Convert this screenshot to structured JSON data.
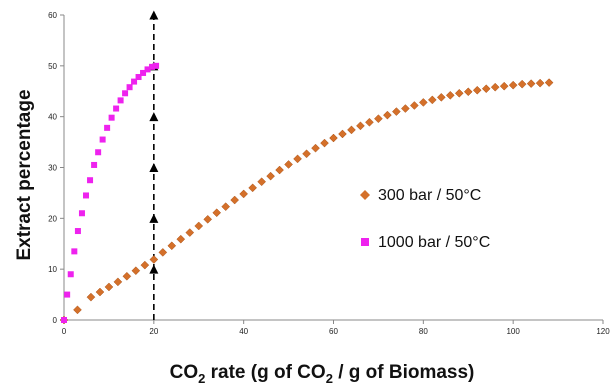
{
  "chart_data": {
    "type": "scatter",
    "title": "",
    "xlabel": {
      "part1": "CO",
      "sub1": "2",
      "part2": " rate (g of CO",
      "sub2": "2",
      "part3": " / g of Biomass)"
    },
    "ylabel": "Extract percentage",
    "xlim": [
      0,
      120
    ],
    "ylim": [
      0,
      60
    ],
    "xticks": [
      "0",
      "20",
      "40",
      "60",
      "80",
      "100",
      "120"
    ],
    "yticks": [
      "0",
      "10",
      "20",
      "30",
      "40",
      "50",
      "60"
    ],
    "grid": false,
    "legend_position": "center-right",
    "series": [
      {
        "name": "300 bar / 50°C",
        "marker": "diamond",
        "color": "#d4702a",
        "x": [
          0,
          3,
          6,
          8,
          10,
          12,
          14,
          16,
          18,
          20,
          22,
          24,
          26,
          28,
          30,
          32,
          34,
          36,
          38,
          40,
          42,
          44,
          46,
          48,
          50,
          52,
          54,
          56,
          58,
          60,
          62,
          64,
          66,
          68,
          70,
          72,
          74,
          76,
          78,
          80,
          82,
          84,
          86,
          88,
          90,
          92,
          94,
          96,
          98,
          100,
          102,
          104,
          106,
          108
        ],
        "y": [
          0,
          2.0,
          4.5,
          5.5,
          6.5,
          7.5,
          8.6,
          9.7,
          10.8,
          11.9,
          13.3,
          14.6,
          15.9,
          17.2,
          18.5,
          19.8,
          21.1,
          22.3,
          23.6,
          24.8,
          26.0,
          27.2,
          28.3,
          29.5,
          30.6,
          31.7,
          32.7,
          33.8,
          34.8,
          35.8,
          36.6,
          37.4,
          38.2,
          38.9,
          39.6,
          40.3,
          41.0,
          41.6,
          42.2,
          42.8,
          43.3,
          43.8,
          44.2,
          44.6,
          44.9,
          45.2,
          45.5,
          45.8,
          46.0,
          46.2,
          46.4,
          46.5,
          46.6,
          46.7
        ]
      },
      {
        "name": "1000 bar / 50°C",
        "marker": "square",
        "color": "#ee22ee",
        "x": [
          0,
          0.7,
          1.5,
          2.3,
          3.1,
          4.0,
          4.9,
          5.8,
          6.7,
          7.6,
          8.6,
          9.6,
          10.6,
          11.6,
          12.6,
          13.6,
          14.6,
          15.6,
          16.6,
          17.6,
          18.6,
          19.6,
          20.5
        ],
        "y": [
          0,
          5.0,
          9.0,
          13.5,
          17.5,
          21.0,
          24.5,
          27.5,
          30.5,
          33.0,
          35.5,
          37.8,
          39.8,
          41.6,
          43.2,
          44.6,
          45.8,
          46.9,
          47.8,
          48.6,
          49.3,
          49.8,
          50.0
        ]
      }
    ],
    "reference_line": {
      "x": 20,
      "marker": "triangle-up",
      "color": "#000000",
      "style": "dashed",
      "y_markers": [
        10,
        20,
        30,
        40,
        50,
        60
      ]
    }
  }
}
